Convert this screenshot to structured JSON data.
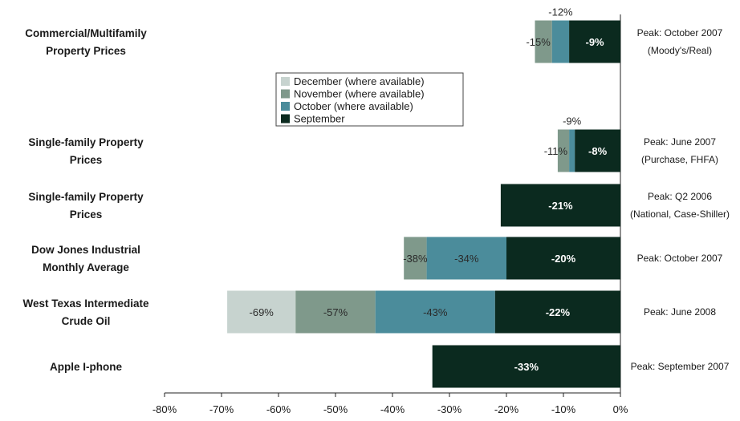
{
  "chart_data": {
    "type": "bar",
    "orientation": "horizontal-stacked",
    "xlim": [
      -80,
      0
    ],
    "x_ticks": [
      "-80%",
      "-70%",
      "-60%",
      "-50%",
      "-40%",
      "-30%",
      "-20%",
      "-10%",
      "0%"
    ],
    "legend": {
      "placement": "upper-center",
      "entries": [
        {
          "label": "December (where available)",
          "color": "#c7d3cf"
        },
        {
          "label": "November (where available)",
          "color": "#7f998b"
        },
        {
          "label": "October (where available)",
          "color": "#4b8c9b"
        },
        {
          "label": "September",
          "color": "#0b2a1f"
        }
      ]
    },
    "categories": [
      {
        "label": [
          "Commercial/Multifamily",
          "Property Prices"
        ],
        "note": [
          "Peak: October 2007",
          "(Moody's/Real)"
        ],
        "segments": [
          {
            "series": "November (where available)",
            "value": -15,
            "label": "-15%"
          },
          {
            "series": "October (where available)",
            "value": -12,
            "label": "-12%"
          },
          {
            "series": "September",
            "value": -9,
            "label": "-9%"
          }
        ]
      },
      {
        "label": [
          "Single-family Property",
          "Prices"
        ],
        "note": [
          "Peak: June 2007",
          "(Purchase, FHFA)"
        ],
        "segments": [
          {
            "series": "November (where available)",
            "value": -11,
            "label": "-11%"
          },
          {
            "series": "October (where available)",
            "value": -9,
            "label": "-9%"
          },
          {
            "series": "September",
            "value": -8,
            "label": "-8%"
          }
        ]
      },
      {
        "label": [
          "Single-family Property",
          "Prices"
        ],
        "note": [
          "Peak: Q2 2006",
          "(National, Case-Shiller)"
        ],
        "segments": [
          {
            "series": "September",
            "value": -21,
            "label": "-21%"
          }
        ]
      },
      {
        "label": [
          "Dow Jones Industrial",
          "Monthly Average"
        ],
        "note": [
          "Peak: October 2007"
        ],
        "segments": [
          {
            "series": "November (where available)",
            "value": -38,
            "label": "-38%"
          },
          {
            "series": "October (where available)",
            "value": -34,
            "label": "-34%"
          },
          {
            "series": "September",
            "value": -20,
            "label": "-20%"
          }
        ]
      },
      {
        "label": [
          "West Texas Intermediate",
          "Crude Oil"
        ],
        "note": [
          "Peak: June 2008"
        ],
        "segments": [
          {
            "series": "December (where available)",
            "value": -69,
            "label": "-69%"
          },
          {
            "series": "November (where available)",
            "value": -57,
            "label": "-57%"
          },
          {
            "series": "October (where available)",
            "value": -43,
            "label": "-43%"
          },
          {
            "series": "September",
            "value": -22,
            "label": "-22%"
          }
        ]
      },
      {
        "label": [
          "Apple I-phone"
        ],
        "note": [
          "Peak: September 2007"
        ],
        "segments": [
          {
            "series": "September",
            "value": -33,
            "label": "-33%"
          }
        ]
      }
    ]
  }
}
